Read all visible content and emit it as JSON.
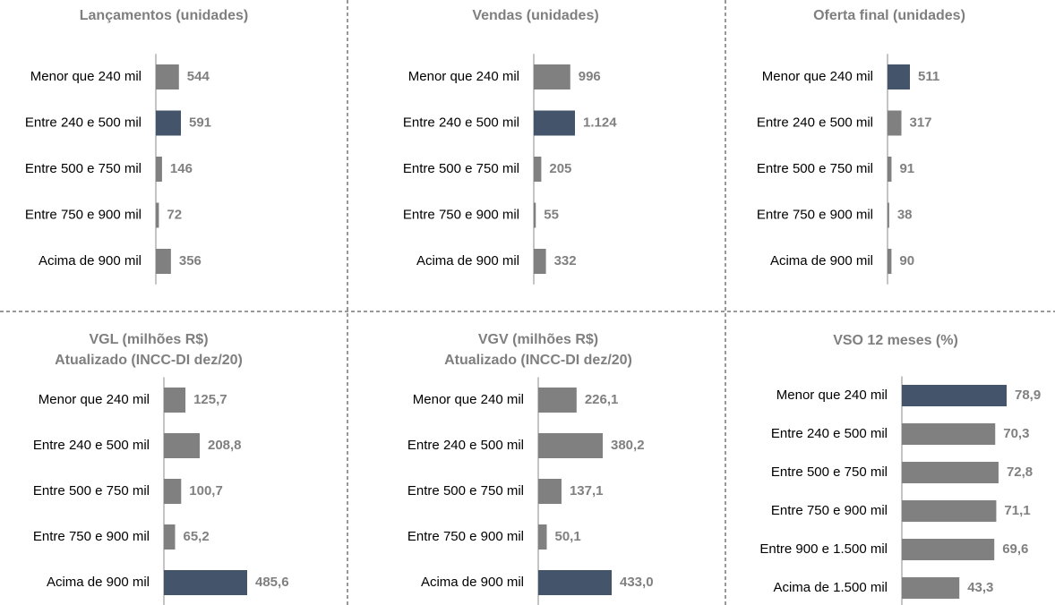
{
  "chart_data": [
    {
      "type": "bar",
      "title": "Lançamentos (unidades)",
      "categories": [
        "Menor que 240 mil",
        "Entre 240 e 500 mil",
        "Entre 500 e 750 mil",
        "Entre 750 e 900 mil",
        "Acima de 900 mil"
      ],
      "values": [
        544,
        591,
        146,
        72,
        356
      ],
      "colors": [
        "#808080",
        "#44546a",
        "#808080",
        "#808080",
        "#808080"
      ]
    },
    {
      "type": "bar",
      "title": "Vendas (unidades)",
      "categories": [
        "Menor que 240 mil",
        "Entre 240 e 500 mil",
        "Entre 500 e 750 mil",
        "Entre 750 e 900 mil",
        "Acima de 900 mil"
      ],
      "values": [
        996,
        1124,
        205,
        55,
        332
      ],
      "value_labels": [
        "996",
        "1.124",
        "205",
        "55",
        "332"
      ],
      "colors": [
        "#808080",
        "#44546a",
        "#808080",
        "#808080",
        "#808080"
      ]
    },
    {
      "type": "bar",
      "title": "Oferta final (unidades)",
      "categories": [
        "Menor que 240 mil",
        "Entre 240 e 500 mil",
        "Entre 500 e 750 mil",
        "Entre 750 e 900 mil",
        "Acima de 900 mil"
      ],
      "values": [
        511,
        317,
        91,
        38,
        90
      ],
      "colors": [
        "#44546a",
        "#808080",
        "#808080",
        "#808080",
        "#808080"
      ]
    },
    {
      "type": "bar",
      "title": "VGL (milhões R$)",
      "subtitle": "Atualizado (INCC-DI dez/20)",
      "categories": [
        "Menor que 240 mil",
        "Entre 240 e 500 mil",
        "Entre 500 e 750 mil",
        "Entre 750 e 900 mil",
        "Acima de 900 mil"
      ],
      "values": [
        125.7,
        208.8,
        100.7,
        65.2,
        485.6
      ],
      "value_labels": [
        "125,7",
        "208,8",
        "100,7",
        "65,2",
        "485,6"
      ],
      "colors": [
        "#808080",
        "#808080",
        "#808080",
        "#808080",
        "#44546a"
      ]
    },
    {
      "type": "bar",
      "title": "VGV (milhões R$)",
      "subtitle": "Atualizado (INCC-DI dez/20)",
      "categories": [
        "Menor que 240 mil",
        "Entre 240 e 500 mil",
        "Entre 500 e 750 mil",
        "Entre 750 e 900 mil",
        "Acima de 900 mil"
      ],
      "values": [
        226.1,
        380.2,
        137.1,
        50.1,
        433.0
      ],
      "value_labels": [
        "226,1",
        "380,2",
        "137,1",
        "50,1",
        "433,0"
      ],
      "colors": [
        "#808080",
        "#808080",
        "#808080",
        "#808080",
        "#44546a"
      ]
    },
    {
      "type": "bar",
      "title": "VSO 12 meses (%)",
      "categories": [
        "Menor que 240 mil",
        "Entre 240 e 500 mil",
        "Entre 500 e 750 mil",
        "Entre 750 e 900 mil",
        "Entre 900 e 1.500 mil",
        "Acima de 1.500 mil"
      ],
      "values": [
        78.9,
        70.3,
        72.8,
        71.1,
        69.6,
        43.3
      ],
      "value_labels": [
        "78,9",
        "70,3",
        "72,8",
        "71,1",
        "69,6",
        "43,3"
      ],
      "colors": [
        "#44546a",
        "#808080",
        "#808080",
        "#808080",
        "#808080",
        "#808080"
      ]
    }
  ]
}
